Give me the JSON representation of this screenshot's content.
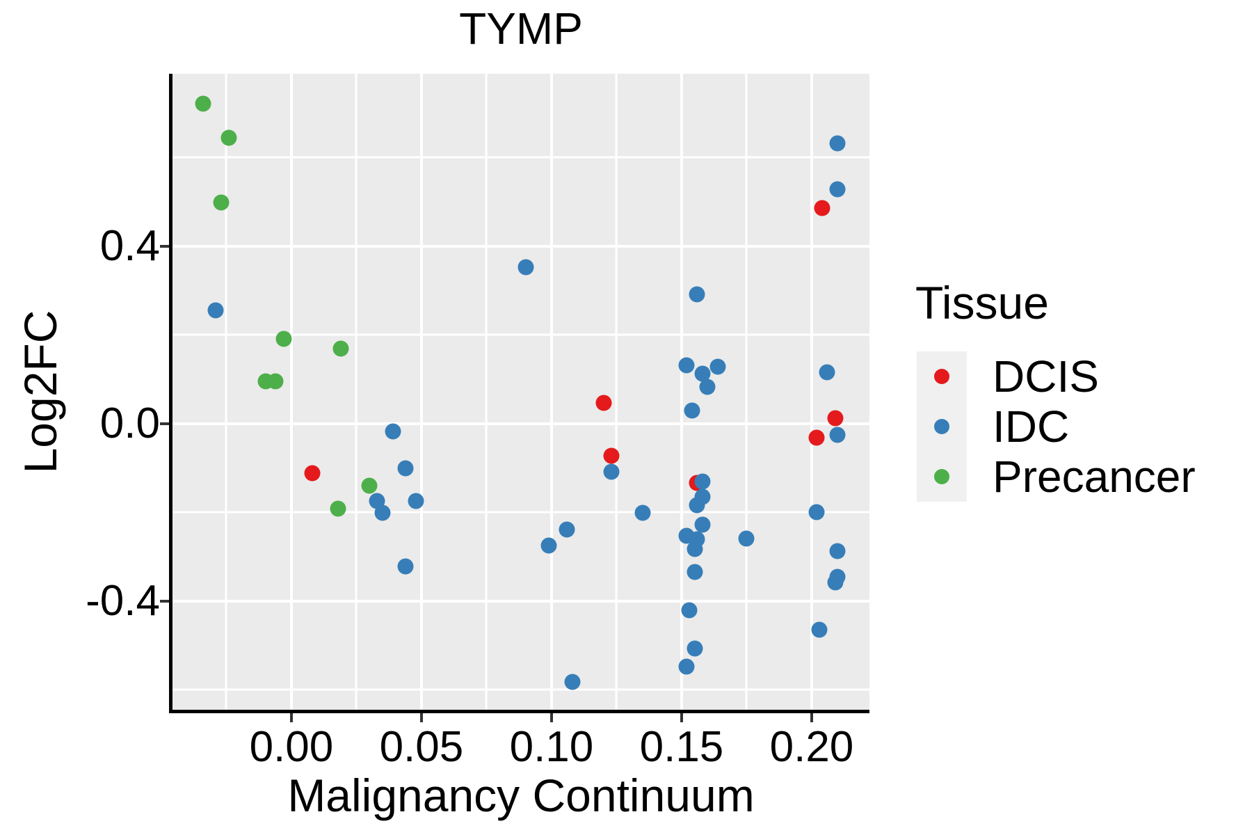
{
  "title": "TYMP",
  "axes": {
    "x_label": "Malignancy Continuum",
    "y_label": "Log2FC"
  },
  "legend": {
    "title": "Tissue",
    "entries": [
      {
        "label": "DCIS",
        "color": "#E41A1C"
      },
      {
        "label": "IDC",
        "color": "#377EB8"
      },
      {
        "label": "Precancer",
        "color": "#4DAF4A"
      }
    ]
  },
  "colors": {
    "panel_background": "#EBEBEB",
    "gridline": "#FFFFFF",
    "axis_line": "#000000",
    "dcis": "#E41A1C",
    "idc": "#377EB8",
    "precancer": "#4DAF4A"
  },
  "chart_data": {
    "type": "scatter",
    "title": "TYMP",
    "xlabel": "Malignancy Continuum",
    "ylabel": "Log2FC",
    "xlim": [
      -0.0457,
      0.2222
    ],
    "ylim": [
      -0.645,
      0.789
    ],
    "grid": true,
    "legend_position": "right",
    "x_ticks": {
      "values": [
        0.0,
        0.05,
        0.1,
        0.15,
        0.2
      ],
      "labels": [
        "0.00",
        "0.05",
        "0.10",
        "0.15",
        "0.20"
      ]
    },
    "y_ticks": {
      "values": [
        -0.4,
        0.0,
        0.4
      ],
      "labels": [
        "-0.4",
        "0.0",
        "0.4"
      ]
    },
    "x_minor": [
      -0.025,
      0.025,
      0.075,
      0.125,
      0.175
    ],
    "y_minor": [
      -0.6,
      -0.2,
      0.2,
      0.6
    ],
    "series": [
      {
        "name": "DCIS",
        "color": "#E41A1C",
        "points": [
          [
            0.008,
            -0.112
          ],
          [
            0.12,
            0.047
          ],
          [
            0.123,
            -0.072
          ],
          [
            0.156,
            -0.134
          ],
          [
            0.204,
            0.486
          ],
          [
            0.209,
            0.012
          ],
          [
            0.202,
            -0.031
          ]
        ]
      },
      {
        "name": "IDC",
        "color": "#377EB8",
        "points": [
          [
            -0.029,
            0.255
          ],
          [
            0.09,
            0.353
          ],
          [
            0.039,
            -0.017
          ],
          [
            0.044,
            -0.1
          ],
          [
            0.033,
            -0.175
          ],
          [
            0.035,
            -0.201
          ],
          [
            0.048,
            -0.174
          ],
          [
            0.044,
            -0.322
          ],
          [
            0.099,
            -0.275
          ],
          [
            0.106,
            -0.238
          ],
          [
            0.108,
            -0.582
          ],
          [
            0.123,
            -0.109
          ],
          [
            0.156,
            0.292
          ],
          [
            0.152,
            0.131
          ],
          [
            0.158,
            0.113
          ],
          [
            0.164,
            0.128
          ],
          [
            0.16,
            0.083
          ],
          [
            0.154,
            0.029
          ],
          [
            0.158,
            -0.131
          ],
          [
            0.158,
            -0.165
          ],
          [
            0.156,
            -0.183
          ],
          [
            0.135,
            -0.201
          ],
          [
            0.158,
            -0.227
          ],
          [
            0.152,
            -0.252
          ],
          [
            0.156,
            -0.26
          ],
          [
            0.155,
            -0.283
          ],
          [
            0.175,
            -0.259
          ],
          [
            0.155,
            -0.335
          ],
          [
            0.153,
            -0.421
          ],
          [
            0.155,
            -0.507
          ],
          [
            0.152,
            -0.548
          ],
          [
            0.21,
            0.632
          ],
          [
            0.21,
            0.529
          ],
          [
            0.206,
            0.116
          ],
          [
            0.21,
            -0.025
          ],
          [
            0.202,
            -0.199
          ],
          [
            0.21,
            -0.287
          ],
          [
            0.21,
            -0.346
          ],
          [
            0.209,
            -0.358
          ],
          [
            0.203,
            -0.464
          ]
        ]
      },
      {
        "name": "Precancer",
        "color": "#4DAF4A",
        "points": [
          [
            -0.034,
            0.722
          ],
          [
            -0.024,
            0.644
          ],
          [
            -0.027,
            0.498
          ],
          [
            -0.003,
            0.191
          ],
          [
            0.019,
            0.17
          ],
          [
            -0.01,
            0.095
          ],
          [
            -0.006,
            0.095
          ],
          [
            0.018,
            -0.191
          ],
          [
            0.03,
            -0.14
          ]
        ]
      }
    ]
  }
}
